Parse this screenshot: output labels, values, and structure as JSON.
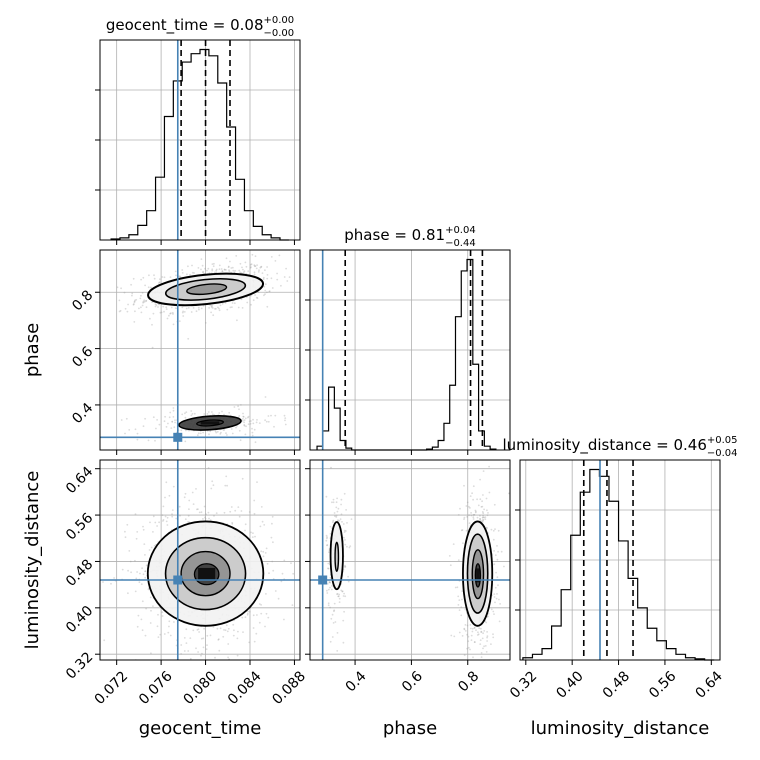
{
  "chart_data": {
    "type": "corner",
    "parameters": [
      "geocent_time",
      "phase",
      "luminosity_distance"
    ],
    "truths": {
      "geocent_time": 0.0775,
      "phase": 0.285,
      "luminosity_distance": 0.448
    },
    "truth_color": "#4682b4",
    "histogram_color": "#000000",
    "axes": {
      "geocent_time": {
        "range": [
          0.0705,
          0.0885
        ],
        "ticks": [
          0.072,
          0.076,
          0.08,
          0.084,
          0.088
        ],
        "tick_labels": [
          "0.072",
          "0.076",
          "0.080",
          "0.084",
          "0.088"
        ]
      },
      "phase": {
        "range": [
          0.24,
          0.95
        ],
        "ticks": [
          0.4,
          0.6,
          0.8
        ],
        "tick_labels": [
          "0.4",
          "0.6",
          "0.8"
        ]
      },
      "luminosity_distance": {
        "range": [
          0.31,
          0.655
        ],
        "ticks": [
          0.32,
          0.4,
          0.48,
          0.56,
          0.64
        ],
        "tick_labels": [
          "0.32",
          "0.40",
          "0.48",
          "0.56",
          "0.64"
        ]
      }
    },
    "diagonal": [
      {
        "parameter": "geocent_time",
        "title": {
          "prefix": "geocent_time = 0.08",
          "plus": "+0.00",
          "minus": "−0.00"
        },
        "quantiles": [
          0.0778,
          0.08,
          0.0822
        ],
        "hist_edges": [
          0.0715,
          0.0723,
          0.0731,
          0.0739,
          0.0747,
          0.0755,
          0.0763,
          0.0771,
          0.0779,
          0.0787,
          0.0795,
          0.0803,
          0.0811,
          0.0819,
          0.0827,
          0.0835,
          0.0843,
          0.0851,
          0.0859,
          0.0867,
          0.0875
        ],
        "hist_counts": [
          1,
          2,
          5,
          14,
          28,
          60,
          118,
          152,
          170,
          178,
          182,
          176,
          150,
          108,
          58,
          28,
          13,
          5,
          2,
          0
        ]
      },
      {
        "parameter": "phase",
        "title": {
          "prefix": "phase = 0.81",
          "plus": "+0.04",
          "minus": "−0.44"
        },
        "quantiles": [
          0.365,
          0.81,
          0.852
        ],
        "hist_edges": [
          0.265,
          0.2855,
          0.306,
          0.3265,
          0.347,
          0.3675,
          0.388,
          0.4085,
          0.429,
          0.6335,
          0.654,
          0.6745,
          0.695,
          0.7155,
          0.736,
          0.7565,
          0.777,
          0.7975,
          0.818,
          0.8385,
          0.859,
          0.8795,
          0.9
        ],
        "hist_counts": [
          4,
          20,
          66,
          44,
          10,
          2,
          0,
          0,
          0,
          0,
          1,
          3,
          10,
          28,
          68,
          140,
          188,
          200,
          90,
          20,
          4,
          1
        ]
      },
      {
        "parameter": "luminosity_distance",
        "title": {
          "prefix": "luminosity_distance = 0.46",
          "plus": "+0.05",
          "minus": "−0.04"
        },
        "quantiles": [
          0.42,
          0.46,
          0.505
        ],
        "hist_edges": [
          0.315,
          0.3315,
          0.348,
          0.3645,
          0.381,
          0.3975,
          0.414,
          0.4305,
          0.447,
          0.4635,
          0.48,
          0.4965,
          0.513,
          0.5295,
          0.546,
          0.5625,
          0.579,
          0.5955,
          0.612,
          0.6285,
          0.645
        ],
        "hist_counts": [
          2,
          5,
          10,
          30,
          62,
          110,
          148,
          168,
          162,
          140,
          105,
          72,
          46,
          28,
          17,
          10,
          5,
          2,
          1,
          0
        ]
      }
    ],
    "xlabels": [
      "geocent_time",
      "phase",
      "luminosity_distance"
    ],
    "ylabels": [
      "phase",
      "luminosity_distance"
    ],
    "grid": true
  }
}
